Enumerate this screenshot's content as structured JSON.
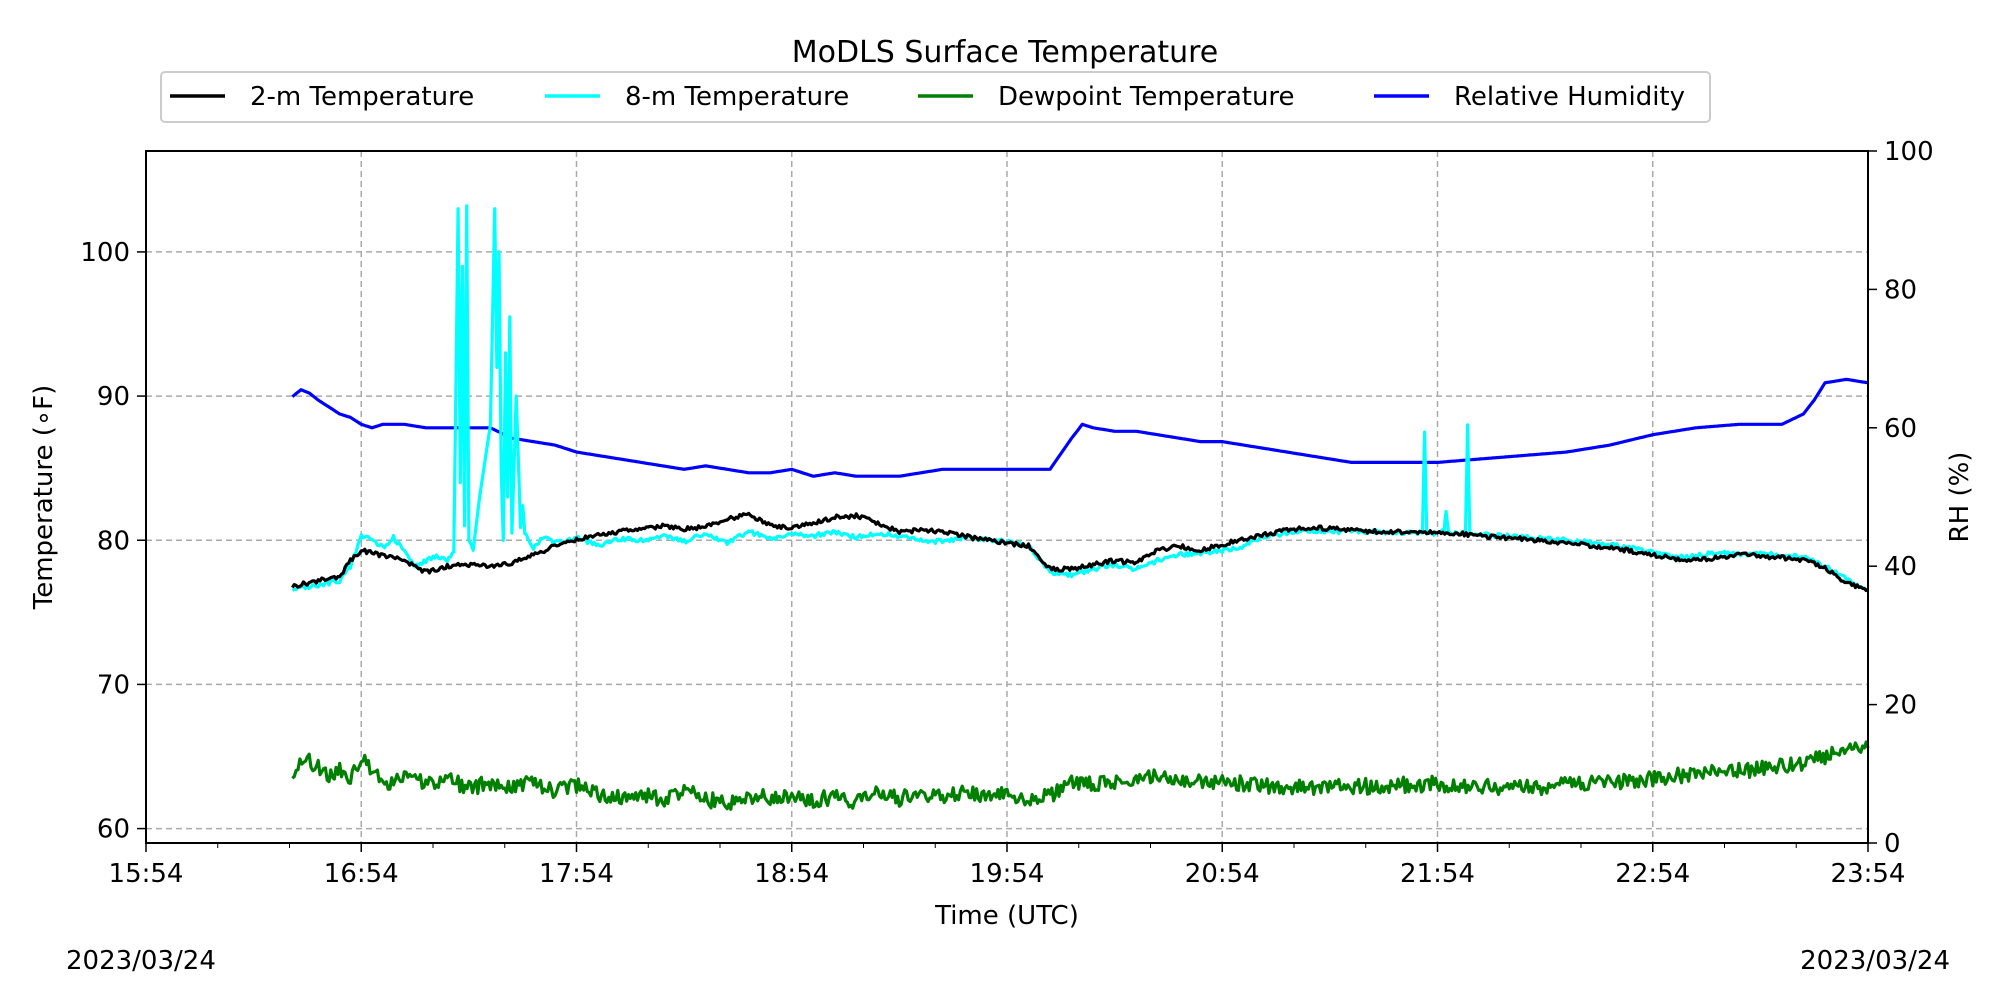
{
  "chart_data": {
    "type": "line",
    "title": "MoDLS Surface Temperature",
    "xlabel": "Time (UTC)",
    "ylabel": "Temperature (∘F)",
    "y2label": "RH (%)",
    "date_left": "2023/03/24",
    "date_right": "2023/03/24",
    "x_ticks": [
      "15:54",
      "16:54",
      "17:54",
      "18:54",
      "19:54",
      "20:54",
      "21:54",
      "22:54",
      "23:54"
    ],
    "xlim_hours": [
      0,
      8
    ],
    "ylim": [
      59,
      107
    ],
    "y_ticks": [
      60,
      70,
      80,
      90,
      100
    ],
    "y2lim": [
      0,
      100
    ],
    "y2_ticks": [
      0,
      20,
      40,
      60,
      80,
      100
    ],
    "grid": true,
    "legend_position": "top-center",
    "legend": [
      {
        "name": "2-m Temperature",
        "color": "#000000"
      },
      {
        "name": "8-m Temperature",
        "color": "#00ffff"
      },
      {
        "name": "Dewpoint Temperature",
        "color": "#008000"
      },
      {
        "name": "Relative Humidity",
        "color": "#0000ff"
      }
    ],
    "series": [
      {
        "name": "2-m Temperature",
        "color": "#000000",
        "axis": "left",
        "x": [
          0.68,
          0.8,
          0.9,
          0.95,
          1.0,
          1.1,
          1.2,
          1.3,
          1.4,
          1.5,
          1.6,
          1.7,
          1.8,
          1.9,
          2.0,
          2.1,
          2.2,
          2.3,
          2.4,
          2.5,
          2.6,
          2.7,
          2.8,
          2.9,
          3.0,
          3.1,
          3.2,
          3.3,
          3.4,
          3.5,
          3.6,
          3.7,
          3.8,
          3.9,
          4.0,
          4.1,
          4.2,
          4.3,
          4.4,
          4.5,
          4.6,
          4.7,
          4.8,
          4.9,
          5.0,
          5.1,
          5.2,
          5.3,
          5.4,
          5.5,
          5.6,
          5.7,
          5.8,
          5.9,
          6.0,
          6.2,
          6.4,
          6.6,
          6.8,
          7.0,
          7.1,
          7.2,
          7.3,
          7.4,
          7.5,
          7.6,
          7.7,
          7.8,
          7.9,
          8.0
        ],
        "y": [
          76.8,
          77.2,
          77.5,
          78.6,
          79.3,
          78.9,
          78.6,
          77.8,
          78.2,
          78.3,
          78.2,
          78.4,
          79.0,
          79.6,
          80.0,
          80.4,
          80.6,
          80.8,
          81.0,
          80.8,
          80.9,
          81.5,
          81.8,
          81.1,
          80.8,
          81.2,
          81.6,
          81.7,
          81.2,
          80.6,
          80.7,
          80.6,
          80.3,
          80.0,
          79.8,
          79.6,
          78.0,
          78.0,
          78.3,
          78.6,
          78.4,
          79.3,
          79.6,
          79.3,
          79.7,
          80.1,
          80.4,
          80.7,
          80.9,
          80.8,
          80.7,
          80.6,
          80.6,
          80.6,
          80.6,
          80.3,
          80.1,
          79.8,
          79.5,
          79.0,
          78.7,
          78.6,
          78.8,
          79.0,
          78.9,
          78.8,
          78.6,
          78.1,
          77.0,
          76.6
        ]
      },
      {
        "name": "8-m Temperature",
        "color": "#00ffff",
        "axis": "left",
        "x": [
          0.68,
          0.8,
          0.9,
          0.95,
          1.0,
          1.05,
          1.1,
          1.15,
          1.2,
          1.25,
          1.3,
          1.35,
          1.4,
          1.43,
          1.45,
          1.46,
          1.47,
          1.48,
          1.49,
          1.5,
          1.52,
          1.55,
          1.6,
          1.62,
          1.63,
          1.64,
          1.65,
          1.66,
          1.67,
          1.68,
          1.69,
          1.7,
          1.72,
          1.74,
          1.75,
          1.76,
          1.77,
          1.78,
          1.8,
          1.85,
          1.9,
          2.0,
          2.1,
          2.2,
          2.3,
          2.4,
          2.5,
          2.6,
          2.7,
          2.8,
          2.9,
          3.0,
          3.1,
          3.2,
          3.3,
          3.4,
          3.5,
          3.6,
          3.7,
          3.8,
          3.9,
          4.0,
          4.1,
          4.2,
          4.3,
          4.4,
          4.5,
          4.6,
          4.7,
          4.8,
          4.9,
          5.0,
          5.1,
          5.2,
          5.3,
          5.4,
          5.5,
          5.6,
          5.7,
          5.8,
          5.9,
          5.93,
          5.94,
          5.95,
          6.0,
          6.03,
          6.04,
          6.05,
          6.1,
          6.13,
          6.14,
          6.15,
          6.2,
          6.4,
          6.6,
          6.8,
          7.0,
          7.1,
          7.2,
          7.3,
          7.4,
          7.5,
          7.6,
          7.7,
          7.8,
          7.9,
          8.0
        ],
        "y": [
          76.6,
          76.9,
          77.2,
          78.2,
          80.3,
          80.0,
          79.5,
          80.2,
          79.2,
          78.2,
          78.6,
          78.9,
          78.6,
          79.2,
          103.0,
          84.0,
          99.0,
          81.0,
          103.2,
          80.0,
          79.3,
          83.0,
          88.0,
          103.0,
          92.0,
          100.0,
          85.0,
          80.0,
          93.0,
          83.0,
          95.5,
          80.5,
          90.0,
          81.0,
          82.5,
          80.6,
          80.3,
          80.0,
          79.5,
          80.3,
          79.8,
          80.2,
          79.6,
          80.1,
          80.0,
          80.3,
          79.9,
          80.5,
          79.8,
          80.6,
          80.1,
          80.4,
          80.3,
          80.6,
          80.2,
          80.5,
          80.3,
          80.0,
          79.9,
          80.2,
          80.1,
          79.9,
          79.6,
          77.8,
          77.6,
          78.0,
          78.3,
          78.0,
          78.6,
          79.0,
          79.1,
          79.3,
          79.6,
          80.3,
          80.5,
          80.6,
          80.6,
          80.6,
          80.6,
          80.5,
          80.5,
          80.5,
          87.5,
          80.5,
          80.5,
          80.6,
          82.1,
          80.6,
          80.5,
          80.6,
          88.0,
          80.5,
          80.4,
          80.2,
          80.0,
          79.7,
          79.2,
          78.8,
          78.9,
          79.2,
          79.0,
          79.1,
          79.0,
          78.8,
          78.2,
          77.3,
          76.5
        ]
      },
      {
        "name": "Dewpoint Temperature",
        "color": "#008000",
        "axis": "left",
        "x": [
          0.68,
          0.75,
          0.8,
          0.85,
          0.9,
          0.95,
          1.0,
          1.05,
          1.1,
          1.2,
          1.3,
          1.4,
          1.5,
          1.6,
          1.7,
          1.8,
          1.9,
          2.0,
          2.1,
          2.2,
          2.3,
          2.4,
          2.5,
          2.6,
          2.7,
          2.8,
          2.9,
          3.0,
          3.1,
          3.2,
          3.3,
          3.4,
          3.5,
          3.6,
          3.7,
          3.8,
          3.9,
          4.0,
          4.1,
          4.2,
          4.3,
          4.4,
          4.5,
          4.6,
          4.7,
          4.8,
          4.9,
          5.0,
          5.2,
          5.4,
          5.6,
          5.8,
          6.0,
          6.2,
          6.4,
          6.6,
          6.8,
          7.0,
          7.2,
          7.4,
          7.6,
          7.7,
          7.8,
          7.9,
          8.0
        ],
        "y": [
          64.0,
          64.7,
          64.3,
          63.6,
          64.1,
          63.5,
          65.0,
          64.0,
          63.2,
          63.4,
          63.2,
          63.4,
          62.8,
          63.2,
          62.9,
          63.3,
          62.6,
          63.0,
          62.3,
          62.1,
          62.4,
          62.0,
          62.7,
          62.0,
          61.8,
          62.3,
          62.1,
          62.4,
          62.0,
          62.2,
          61.9,
          62.5,
          62.1,
          62.4,
          62.2,
          62.5,
          62.3,
          62.5,
          62.1,
          62.3,
          63.3,
          63.0,
          63.2,
          63.5,
          63.6,
          63.4,
          63.3,
          63.2,
          63.0,
          62.9,
          62.9,
          63.0,
          63.1,
          62.9,
          62.8,
          63.0,
          63.2,
          63.5,
          63.8,
          64.0,
          64.3,
          64.5,
          65.0,
          65.6,
          65.6
        ]
      },
      {
        "name": "Relative Humidity",
        "color": "#0000ff",
        "axis": "right",
        "x": [
          0.68,
          0.72,
          0.76,
          0.8,
          0.85,
          0.9,
          0.95,
          1.0,
          1.05,
          1.1,
          1.2,
          1.3,
          1.4,
          1.5,
          1.6,
          1.7,
          1.8,
          1.9,
          2.0,
          2.1,
          2.2,
          2.3,
          2.4,
          2.5,
          2.6,
          2.7,
          2.8,
          2.9,
          3.0,
          3.1,
          3.2,
          3.3,
          3.4,
          3.5,
          3.6,
          3.7,
          3.8,
          3.9,
          4.0,
          4.2,
          4.3,
          4.35,
          4.4,
          4.5,
          4.6,
          4.7,
          4.8,
          4.9,
          5.0,
          5.1,
          5.2,
          5.3,
          5.4,
          5.5,
          5.6,
          5.8,
          6.0,
          6.2,
          6.4,
          6.6,
          6.8,
          7.0,
          7.2,
          7.4,
          7.5,
          7.6,
          7.7,
          7.75,
          7.8,
          7.9,
          8.0
        ],
        "y": [
          64.5,
          65.5,
          65.0,
          64.0,
          63.0,
          62.0,
          61.5,
          60.5,
          60.0,
          60.5,
          60.5,
          60.0,
          60.0,
          60.0,
          60.0,
          58.5,
          58.0,
          57.5,
          56.5,
          56.0,
          55.5,
          55.0,
          54.5,
          54.0,
          54.5,
          54.0,
          53.5,
          53.5,
          54.0,
          53.0,
          53.5,
          53.0,
          53.0,
          53.0,
          53.5,
          54.0,
          54.0,
          54.0,
          54.0,
          54.0,
          58.5,
          60.5,
          60.0,
          59.5,
          59.5,
          59.0,
          58.5,
          58.0,
          58.0,
          57.5,
          57.0,
          56.5,
          56.0,
          55.5,
          55.0,
          55.0,
          55.0,
          55.5,
          56.0,
          56.5,
          57.5,
          59.0,
          60.0,
          60.5,
          60.5,
          60.5,
          62.0,
          64.0,
          66.5,
          67.0,
          66.5
        ]
      }
    ]
  }
}
